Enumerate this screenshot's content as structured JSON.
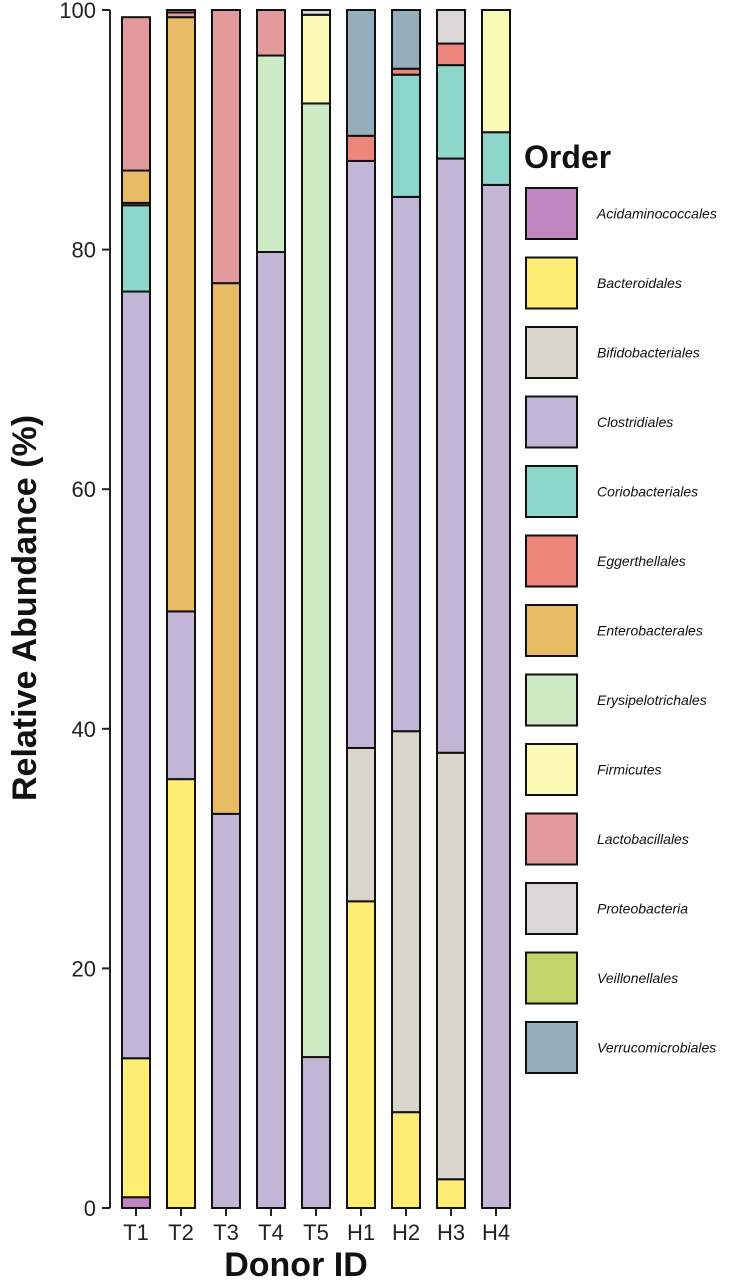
{
  "chart_data": {
    "type": "bar",
    "stacked": true,
    "title": "",
    "xlabel": "Donor ID",
    "ylabel": "Relative Abundance (%)",
    "ylim": [
      0,
      100
    ],
    "yticks": [
      "0",
      "20",
      "40",
      "60",
      "80",
      "100"
    ],
    "categories": [
      "T1",
      "T2",
      "T3",
      "T4",
      "T5",
      "H1",
      "H2",
      "H3",
      "H4"
    ],
    "legend": {
      "title": "Order",
      "position": "right"
    },
    "grid": false,
    "series": [
      {
        "name": "Acidaminococcales",
        "color": "#C086C0",
        "values": [
          0.9,
          0,
          0,
          0,
          0,
          0,
          0,
          0,
          0
        ]
      },
      {
        "name": "Bacteroidales",
        "color": "#FEEC73",
        "values": [
          11.6,
          35.8,
          0,
          0,
          0,
          25.6,
          8,
          2.4,
          0
        ]
      },
      {
        "name": "Bifidobacteriales",
        "color": "#DAD6CB",
        "values": [
          0,
          0,
          0,
          0,
          0,
          12.8,
          31.8,
          35.6,
          0
        ]
      },
      {
        "name": "Clostridiales",
        "color": "#C2B5D5",
        "values": [
          64,
          14,
          32.9,
          79.8,
          12.6,
          49,
          44.6,
          49.6,
          85.4
        ]
      },
      {
        "name": "Coriobacteriales",
        "color": "#8DD6C9",
        "values": [
          7.2,
          0,
          0,
          0,
          0,
          0,
          10.2,
          7.8,
          4.4
        ]
      },
      {
        "name": "Eggerthellales",
        "color": "#EC857C",
        "values": [
          0.2,
          0,
          0,
          0,
          0,
          2.1,
          0.5,
          1.8,
          0
        ]
      },
      {
        "name": "Enterobacterales",
        "color": "#E8BB64",
        "values": [
          2.7,
          49.6,
          44.3,
          0,
          0,
          0,
          0,
          0,
          0
        ]
      },
      {
        "name": "Erysipelotrichales",
        "color": "#CCEBC5",
        "values": [
          0,
          0,
          0,
          16.4,
          79.6,
          0,
          0,
          0,
          0
        ]
      },
      {
        "name": "Firmicutes",
        "color": "#FAFAB6",
        "values": [
          0,
          0,
          0,
          0,
          7.4,
          0,
          0,
          0,
          10.2
        ]
      },
      {
        "name": "Lactobacillales",
        "color": "#E39A9A",
        "values": [
          12.8,
          0.4,
          22.8,
          3.8,
          0,
          0,
          0,
          0,
          0
        ]
      },
      {
        "name": "Proteobacteria",
        "color": "#DBD6D8",
        "values": [
          0,
          0.2,
          0,
          0,
          0.4,
          0,
          0,
          2.8,
          0
        ]
      },
      {
        "name": "Veillonellales",
        "color": "#C3D46D",
        "values": [
          0,
          0,
          0,
          0,
          0,
          0,
          0,
          0,
          0
        ]
      },
      {
        "name": "Verrucomicrobiales",
        "color": "#96ADBB",
        "values": [
          0,
          0,
          0,
          0,
          0,
          10.5,
          4.9,
          0,
          0
        ]
      }
    ]
  }
}
